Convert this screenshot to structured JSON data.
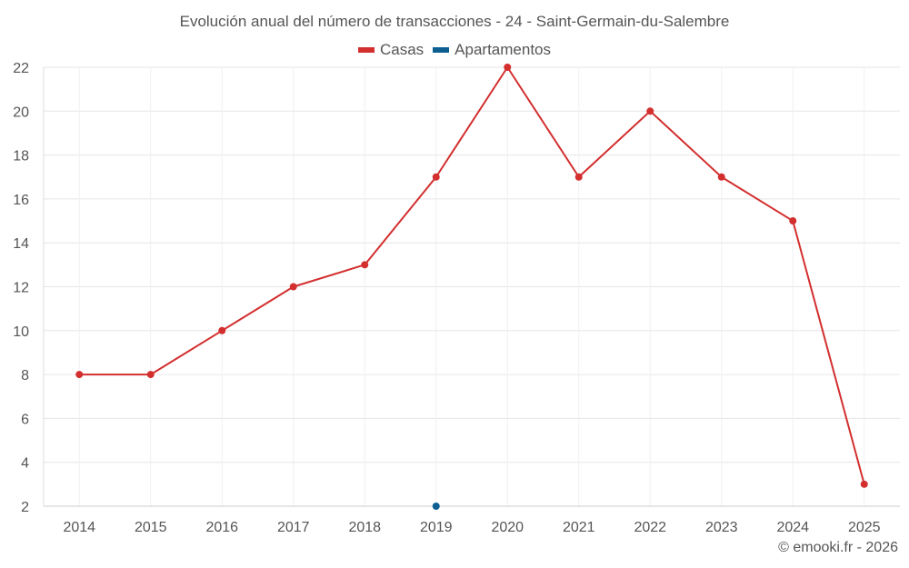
{
  "chart_data": {
    "type": "line",
    "title": "Evolución anual del número de transacciones - 24 - Saint-Germain-du-Salembre",
    "xlabel": "",
    "ylabel": "",
    "categories": [
      "2014",
      "2015",
      "2016",
      "2017",
      "2018",
      "2019",
      "2020",
      "2021",
      "2022",
      "2023",
      "2024",
      "2025"
    ],
    "ylim": [
      2,
      22
    ],
    "yticks": [
      2,
      4,
      6,
      8,
      10,
      12,
      14,
      16,
      18,
      20,
      22
    ],
    "grid": true,
    "legend_position": "top-center",
    "series": [
      {
        "name": "Casas",
        "color": "#d32f2f",
        "values": [
          8,
          8,
          10,
          12,
          13,
          17,
          22,
          17,
          20,
          17,
          15,
          3
        ]
      },
      {
        "name": "Apartamentos",
        "color": "#0d5f91",
        "values": [
          null,
          null,
          null,
          null,
          null,
          2,
          null,
          null,
          null,
          null,
          null,
          null
        ]
      }
    ]
  },
  "credit": "© emooki.fr - 2026"
}
